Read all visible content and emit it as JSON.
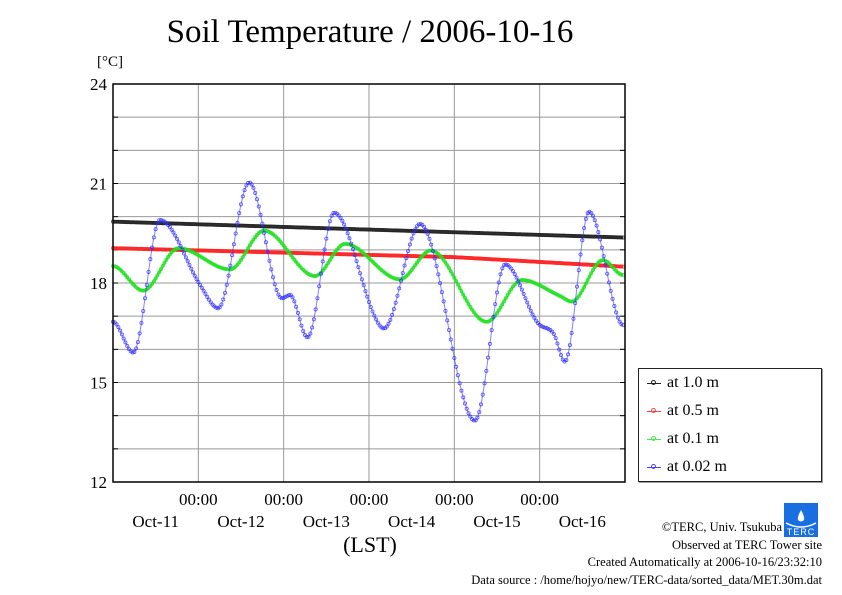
{
  "chart_data": {
    "type": "line",
    "title": "Soil Temperature / 2006-10-16",
    "ylabel": "[°C]",
    "xlabel": "(LST)",
    "ylim": [
      12,
      24
    ],
    "yticks": [
      "12",
      "15",
      "18",
      "21",
      "24"
    ],
    "ytick_values": [
      12,
      15,
      18,
      21,
      24
    ],
    "x_unit": "hours since Oct-11 00:00",
    "xlim": [
      0,
      144
    ],
    "xticks_time": [
      "00:00",
      "00:00",
      "00:00",
      "00:00",
      "00:00"
    ],
    "xticks_hours": [
      24,
      48,
      72,
      96,
      120
    ],
    "day_labels": [
      "Oct-11",
      "Oct-12",
      "Oct-13",
      "Oct-14",
      "Oct-15",
      "Oct-16"
    ],
    "grid": true,
    "legend_placement": "right",
    "series": [
      {
        "name": "at 1.0 m",
        "color": "#222222",
        "x": [
          0,
          144
        ],
        "values": [
          19.85,
          19.37
        ]
      },
      {
        "name": "at 0.5 m",
        "color": "#ff2020",
        "x": [
          0,
          96,
          144
        ],
        "values": [
          19.05,
          18.78,
          18.49
        ]
      },
      {
        "name": "at 0.1 m",
        "color": "#20e020",
        "x": [
          0,
          8.5,
          18.4,
          32.9,
          42.5,
          56.8,
          65.3,
          80.7,
          89.4,
          105.1,
          115,
          125.7,
          129,
          137.8,
          143.5
        ],
        "values": [
          18.51,
          17.77,
          19.05,
          18.41,
          19.58,
          18.21,
          19.18,
          18.11,
          18.98,
          16.83,
          18.09,
          17.61,
          17.44,
          18.69,
          18.24
        ]
      },
      {
        "name": "at 0.02 m",
        "color": "#3030ff",
        "x": [
          0,
          5.7,
          13.2,
          24.5,
          29.6,
          38.3,
          47.5,
          49.8,
          54.7,
          62.2,
          73.2,
          76.2,
          86.4,
          101.8,
          110.3,
          119.2,
          123.9,
          127.1,
          133.9,
          143.5
        ],
        "values": [
          16.83,
          15.9,
          19.9,
          17.94,
          17.24,
          21.03,
          17.54,
          17.64,
          16.36,
          20.12,
          17.09,
          16.63,
          19.78,
          13.85,
          18.56,
          16.83,
          16.48,
          15.63,
          20.15,
          16.73
        ]
      }
    ]
  },
  "footer": {
    "copyright": "©TERC, Univ. Tsukuba",
    "site": "Observed at TERC Tower site",
    "created": "Created Automatically at 2006-10-16/23:32:10",
    "source": "Data source : /home/hojyo/new/TERC-data/sorted_data/MET.30m.dat",
    "logo_text": "TERC"
  }
}
